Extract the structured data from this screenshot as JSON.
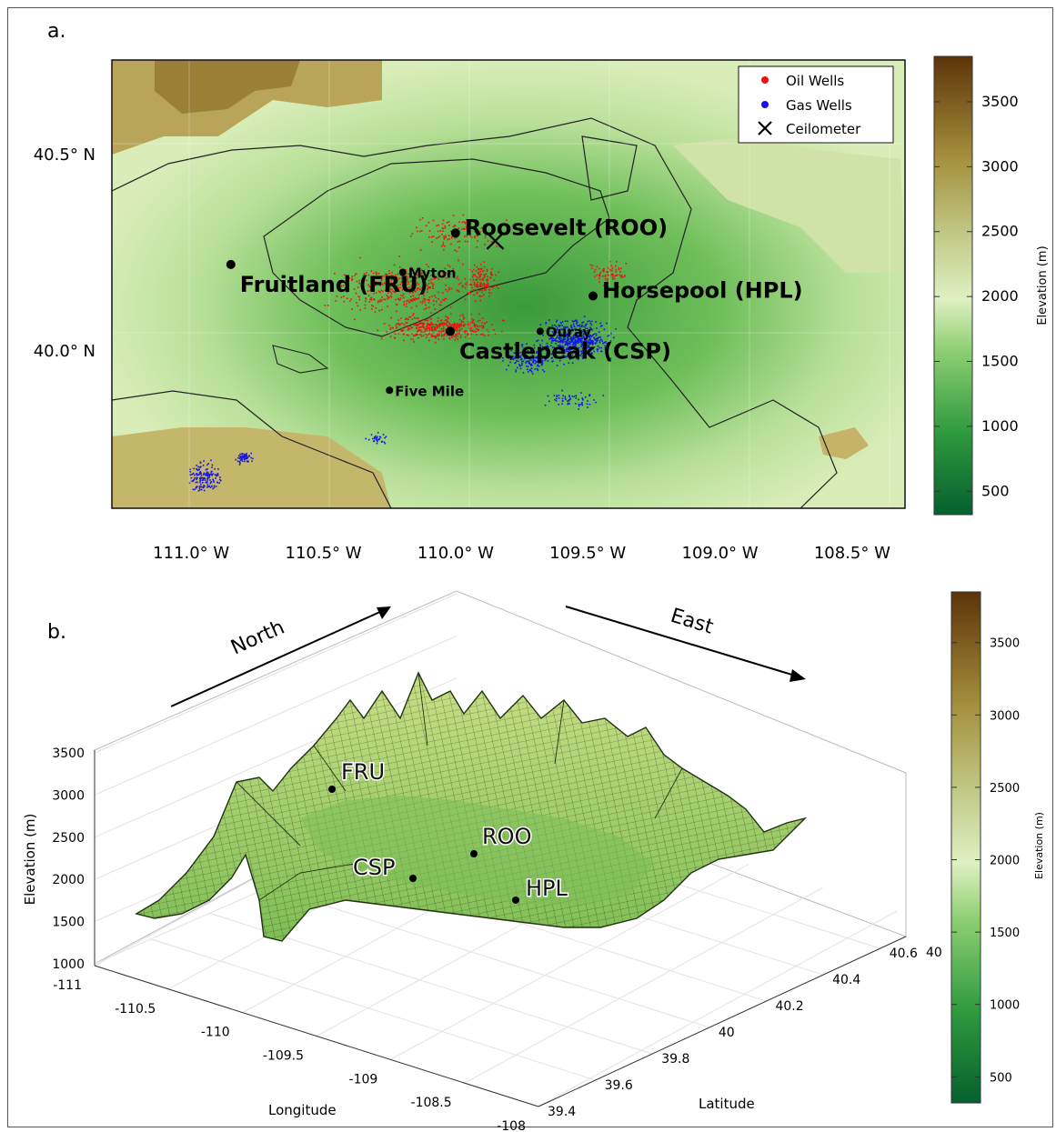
{
  "panel_a": {
    "label": "a.",
    "legend": [
      {
        "label": "Oil Wells",
        "color": "#ee1111",
        "marker": "dot"
      },
      {
        "label": "Gas Wells",
        "color": "#1414e6",
        "marker": "dot"
      },
      {
        "label": "Ceilometer",
        "color": "#000000",
        "marker": "x"
      }
    ],
    "sites": [
      {
        "label": "Roosevelt (ROO)",
        "lon": -110.0,
        "lat": 40.3,
        "size": "large"
      },
      {
        "label": "Fruitland (FRU)",
        "lon": -110.85,
        "lat": 40.22,
        "size": "large"
      },
      {
        "label": "Horsepool (HPL)",
        "lon": -109.48,
        "lat": 40.14,
        "size": "large"
      },
      {
        "label": "Castlepeak (CSP)",
        "lon": -110.02,
        "lat": 40.05,
        "size": "large"
      },
      {
        "label": "Myton",
        "lon": -110.2,
        "lat": 40.2,
        "size": "small"
      },
      {
        "label": "Ouray",
        "lon": -109.68,
        "lat": 40.05,
        "size": "small"
      },
      {
        "label": "Five Mile",
        "lon": -110.25,
        "lat": 39.9,
        "size": "small"
      }
    ],
    "ceilometer": {
      "lon": -109.85,
      "lat": 40.28
    },
    "colorbar": {
      "label": "Elevation (m)",
      "ticks": [
        "500",
        "1000",
        "1500",
        "2000",
        "2500",
        "3000",
        "3500"
      ]
    }
  },
  "panel_b": {
    "label": "b.",
    "arrow_north": "North",
    "arrow_east": "East",
    "sites": [
      "FRU",
      "ROO",
      "CSP",
      "HPL"
    ],
    "colorbar": {
      "label": "Elevation (m)",
      "ticks": [
        "500",
        "1000",
        "1500",
        "2000",
        "2500",
        "3000",
        "3500"
      ]
    }
  },
  "chart_data": [
    {
      "type": "heatmap",
      "title": "",
      "xlabel": "",
      "ylabel": "",
      "x_ticks": [
        "111.0° W",
        "110.5° W",
        "110.0° W",
        "109.5° W",
        "109.0° W",
        "108.5° W"
      ],
      "x_values": [
        -111.0,
        -110.5,
        -110.0,
        -109.5,
        -109.0,
        -108.5
      ],
      "y_ticks": [
        "40.5° N",
        "40.0° N"
      ],
      "y_values": [
        40.5,
        40.0
      ],
      "xlim": [
        -111.3,
        -108.3
      ],
      "ylim": [
        39.6,
        40.74
      ],
      "colorbar_range": [
        320,
        3850
      ],
      "series": [
        {
          "name": "Oil Wells",
          "color": "#ee1111"
        },
        {
          "name": "Gas Wells",
          "color": "#1414e6"
        }
      ]
    },
    {
      "type": "area",
      "title": "",
      "xlabel": "Longitude",
      "ylabel": "Latitude",
      "zlabel": "Elevation (m)",
      "x_ticks": [
        "-111",
        "-110.5",
        "-110",
        "-109.5",
        "-109",
        "-108.5",
        "-108"
      ],
      "x_values": [
        -111,
        -110.5,
        -110,
        -109.5,
        -109,
        -108.5,
        -108
      ],
      "y_ticks": [
        "39.4",
        "39.6",
        "39.8",
        "40",
        "40.2",
        "40.4",
        "40.6"
      ],
      "y_values": [
        39.4,
        39.6,
        39.8,
        40.0,
        40.2,
        40.4,
        40.6
      ],
      "z_ticks": [
        "1000",
        "1500",
        "2000",
        "2500",
        "3000",
        "3500"
      ],
      "z_values": [
        1000,
        1500,
        2000,
        2500,
        3000,
        3500
      ],
      "top_right_tick": "40"
    }
  ]
}
